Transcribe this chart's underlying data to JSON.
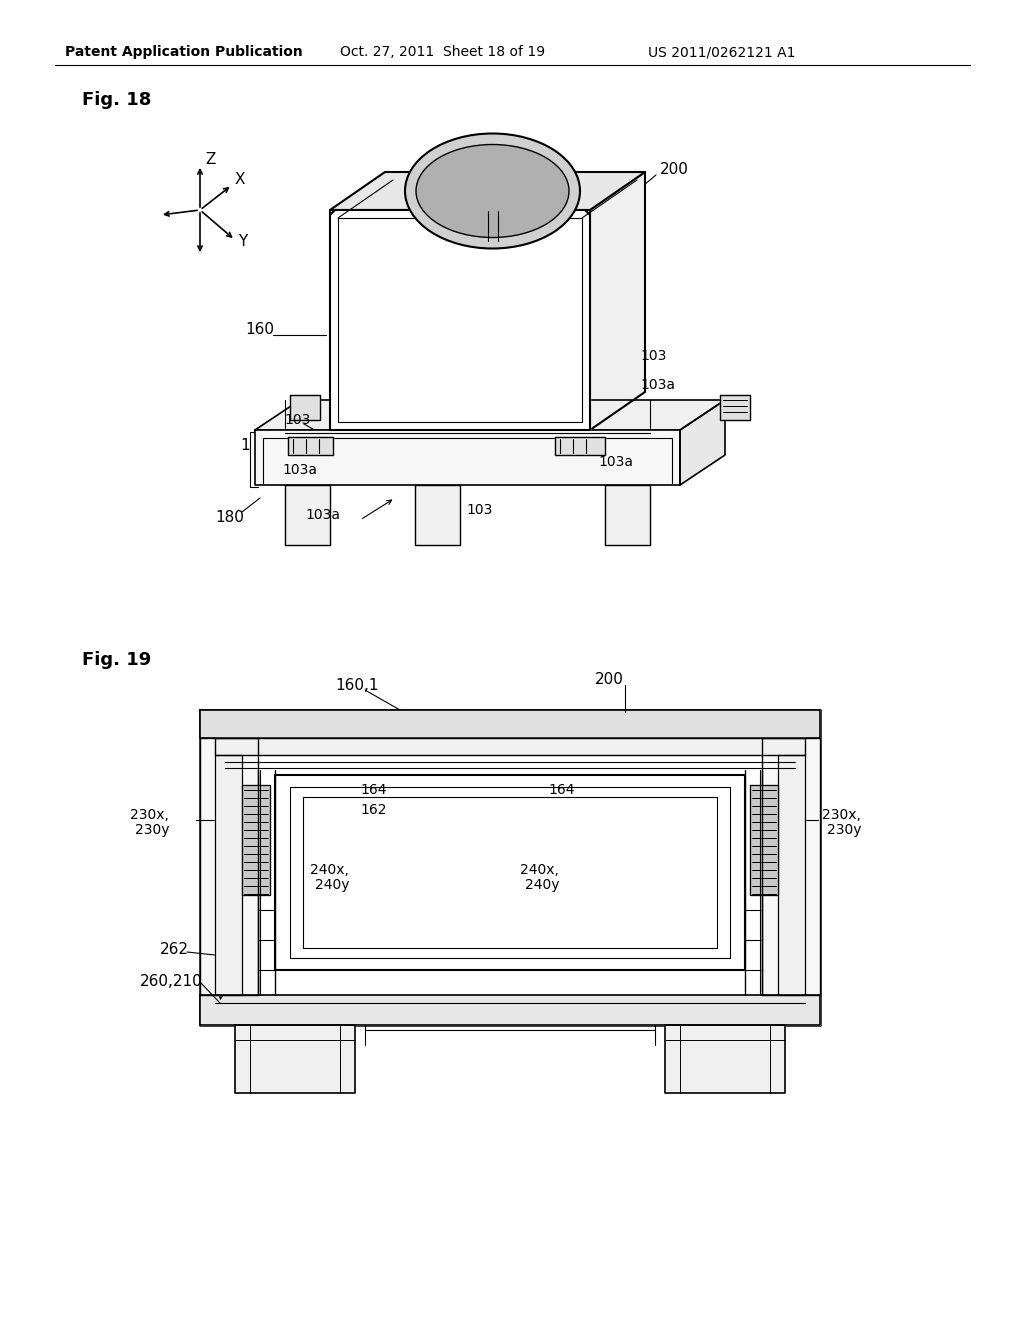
{
  "bg_color": "#ffffff",
  "header_left": "Patent Application Publication",
  "header_center": "Oct. 27, 2011  Sheet 18 of 19",
  "header_right": "US 2011/0262121 A1",
  "fig18_label": "Fig. 18",
  "fig19_label": "Fig. 19",
  "lc": "#000000",
  "tc": "#000000"
}
